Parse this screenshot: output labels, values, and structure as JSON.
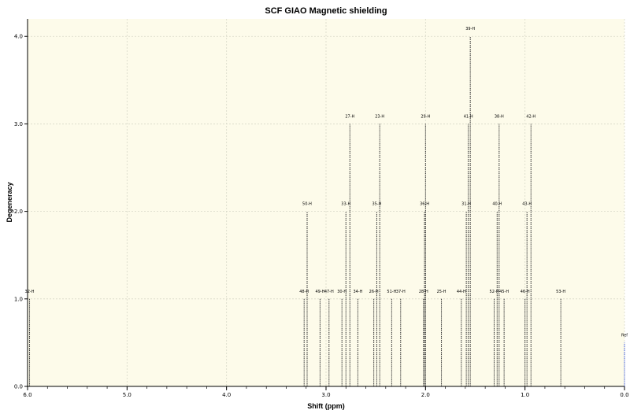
{
  "chart_data": {
    "type": "stick",
    "title": "SCF GIAO Magnetic shielding",
    "xlabel": "Shift (ppm)",
    "ylabel": "Degeneracy",
    "xlim": [
      6.0,
      0.0
    ],
    "ylim": [
      0.0,
      4.2
    ],
    "x_ticks": [
      "6.0",
      "5.0",
      "4.0",
      "3.0",
      "2.0",
      "1.0",
      "0.0"
    ],
    "y_ticks": [
      "0.0",
      "1.0",
      "2.0",
      "3.0",
      "4.0"
    ],
    "grid": true,
    "peaks": [
      {
        "label": "32-H",
        "x": 5.98,
        "y": 1.0
      },
      {
        "label": "48-H",
        "x": 3.22,
        "y": 1.0
      },
      {
        "label": "50-H",
        "x": 3.19,
        "y": 2.0
      },
      {
        "label": "49-H",
        "x": 3.06,
        "y": 1.0
      },
      {
        "label": "47-H",
        "x": 2.97,
        "y": 1.0
      },
      {
        "label": "30-H",
        "x": 2.84,
        "y": 1.0
      },
      {
        "label": "33-H",
        "x": 2.8,
        "y": 2.0
      },
      {
        "label": "27-H",
        "x": 2.76,
        "y": 3.0
      },
      {
        "label": "34-H",
        "x": 2.68,
        "y": 1.0
      },
      {
        "label": "26-H",
        "x": 2.52,
        "y": 1.0
      },
      {
        "label": "35-H",
        "x": 2.49,
        "y": 2.0
      },
      {
        "label": "23-H",
        "x": 2.46,
        "y": 3.0
      },
      {
        "label": "51-H",
        "x": 2.34,
        "y": 1.0
      },
      {
        "label": "37-H",
        "x": 2.25,
        "y": 1.0
      },
      {
        "label": "28-H",
        "x": 2.02,
        "y": 1.0
      },
      {
        "label": "36-H",
        "x": 2.01,
        "y": 2.0
      },
      {
        "label": "29-H",
        "x": 2.0,
        "y": 3.0
      },
      {
        "label": "25-H",
        "x": 1.84,
        "y": 1.0
      },
      {
        "label": "44-H",
        "x": 1.64,
        "y": 1.0
      },
      {
        "label": "31-H",
        "x": 1.59,
        "y": 2.0
      },
      {
        "label": "41-H",
        "x": 1.57,
        "y": 3.0
      },
      {
        "label": "39-H",
        "x": 1.55,
        "y": 4.0
      },
      {
        "label": "52-H",
        "x": 1.31,
        "y": 1.0
      },
      {
        "label": "40-H",
        "x": 1.28,
        "y": 2.0
      },
      {
        "label": "38-H",
        "x": 1.26,
        "y": 3.0
      },
      {
        "label": "45-H",
        "x": 1.21,
        "y": 1.0
      },
      {
        "label": "46-H",
        "x": 1.0,
        "y": 1.0
      },
      {
        "label": "43-H",
        "x": 0.98,
        "y": 2.0
      },
      {
        "label": "42-H",
        "x": 0.94,
        "y": 3.0
      },
      {
        "label": "53-H",
        "x": 0.64,
        "y": 1.0
      },
      {
        "label": "Ref",
        "x": 0.0,
        "y": 0.5
      }
    ]
  },
  "colors": {
    "plot_background": "#fdfbea",
    "grid": "#d8d8c8",
    "stick": "#333333",
    "ref_stick": "#3d5bd9",
    "axis": "#000000"
  }
}
